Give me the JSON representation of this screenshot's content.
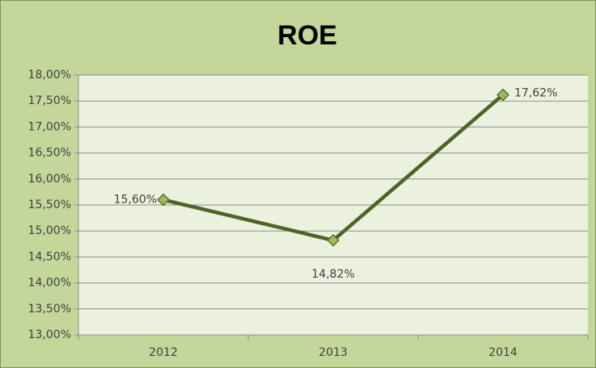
{
  "chart_data": {
    "type": "line",
    "title": "ROE",
    "categories": [
      "2012",
      "2013",
      "2014"
    ],
    "series": [
      {
        "name": "ROE",
        "color": "#4f6228",
        "marker_color": "#9bbb59",
        "values": [
          15.6,
          14.82,
          17.62
        ],
        "value_labels": [
          "15,60%",
          "14,82%",
          "17,62%"
        ]
      }
    ],
    "ylim": [
      13,
      18
    ],
    "yticks": [
      {
        "value": 13,
        "label": "13,00%"
      },
      {
        "value": 13.5,
        "label": "13,50%"
      },
      {
        "value": 14,
        "label": "14,00%"
      },
      {
        "value": 14.5,
        "label": "14,50%"
      },
      {
        "value": 15,
        "label": "15,00%"
      },
      {
        "value": 15.5,
        "label": "15,50%"
      },
      {
        "value": 16,
        "label": "16,00%"
      },
      {
        "value": 16.5,
        "label": "16,50%"
      },
      {
        "value": 17,
        "label": "17,00%"
      },
      {
        "value": 17.5,
        "label": "17,50%"
      },
      {
        "value": 18,
        "label": "18,00%"
      }
    ],
    "grid": true
  }
}
